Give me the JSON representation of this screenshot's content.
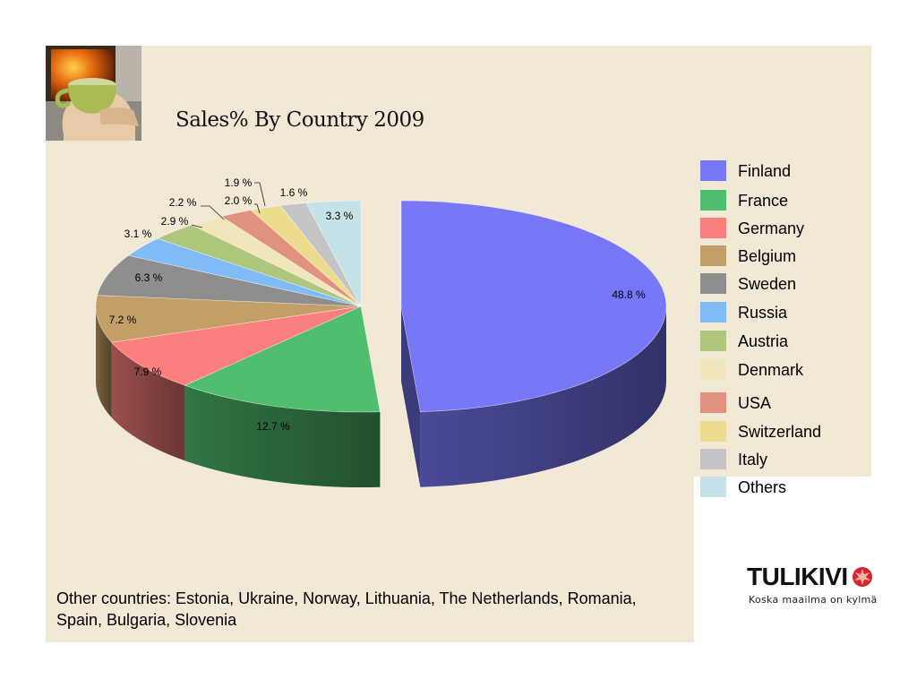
{
  "chart_data": {
    "type": "pie",
    "title": "Sales% By Country 2009",
    "exploded": "Finland",
    "slices": [
      {
        "label": "Finland",
        "value": 48.8,
        "display": "48.8 %",
        "color": "#7777f7"
      },
      {
        "label": "France",
        "value": 12.7,
        "display": "12.7 %",
        "color": "#4fbe6e"
      },
      {
        "label": "Germany",
        "value": 7.9,
        "display": "7.9 %",
        "color": "#fb7f7d"
      },
      {
        "label": "Belgium",
        "value": 7.2,
        "display": "7.2 %",
        "color": "#c39f67"
      },
      {
        "label": "Sweden",
        "value": 6.3,
        "display": "6.3 %",
        "color": "#8e8e8e"
      },
      {
        "label": "Russia",
        "value": 3.1,
        "display": "3.1 %",
        "color": "#80bbf9"
      },
      {
        "label": "Austria",
        "value": 2.9,
        "display": "2.9 %",
        "color": "#aec77d"
      },
      {
        "label": "Denmark",
        "value": 2.2,
        "display": "2.2 %",
        "color": "#efe6bc"
      },
      {
        "label": "USA",
        "value": 2.0,
        "display": "2.0 %",
        "color": "#e0927f"
      },
      {
        "label": "Switzerland",
        "value": 1.9,
        "display": "1.9 %",
        "color": "#ecdc8d"
      },
      {
        "label": "Italy",
        "value": 1.6,
        "display": "1.6 %",
        "color": "#c4c4c4"
      },
      {
        "label": "Others",
        "value": 3.3,
        "display": "3.3 %",
        "color": "#c5e2e8"
      }
    ],
    "legend_position": "right"
  },
  "footnote": "Other countries: Estonia, Ukraine, Norway, Lithuania, The Netherlands, Romania, Spain, Bulgaria, Slovenia",
  "logo": {
    "name": "TULIKIVI",
    "tagline": "Koska maailma on kylmä"
  }
}
